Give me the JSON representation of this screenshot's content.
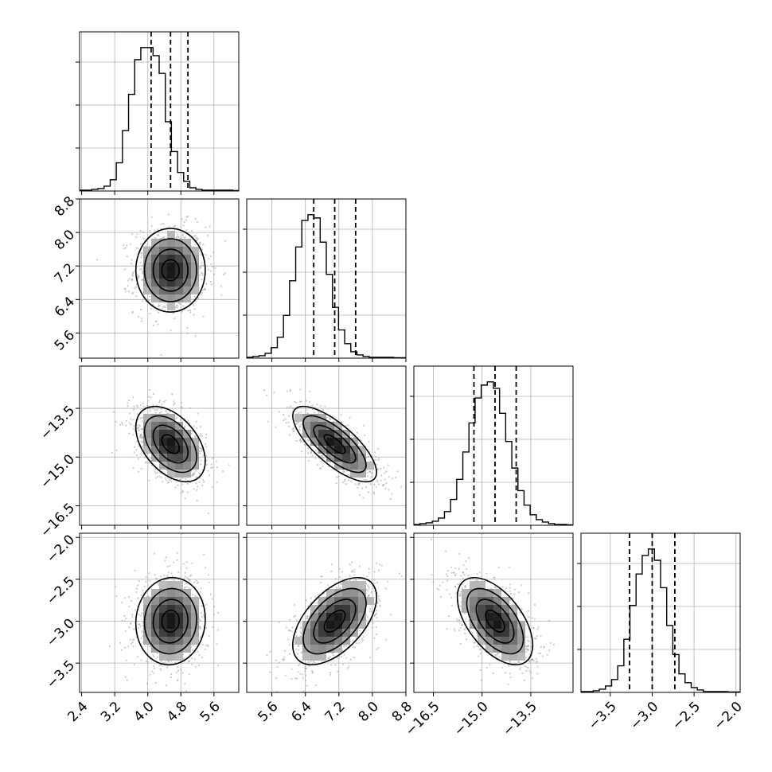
{
  "chart_data": {
    "type": "corner",
    "grid": true,
    "parameters": [
      {
        "mean": 4.55,
        "sd": 0.42,
        "lo": 2.35,
        "hi": 6.2,
        "ticks": [
          "2.4",
          "3.2",
          "4.0",
          "4.8",
          "5.6"
        ],
        "tick_values": [
          2.4,
          3.2,
          4.0,
          4.8,
          5.6
        ],
        "quantiles": [
          4.08,
          4.55,
          4.97
        ]
      },
      {
        "mean": 7.1,
        "sd": 0.5,
        "lo": 5.0,
        "hi": 8.8,
        "ticks": [
          "5.6",
          "6.4",
          "7.2",
          "8.0",
          "8.8"
        ],
        "tick_values": [
          5.6,
          6.4,
          7.2,
          8.0,
          8.8
        ],
        "quantiles": [
          6.6,
          7.1,
          7.6
        ]
      },
      {
        "mean": -14.6,
        "sd": 0.58,
        "lo": -17.1,
        "hi": -12.2,
        "ticks": [
          "−16.5",
          "−15.0",
          "−13.5"
        ],
        "tick_values": [
          -16.5,
          -15.0,
          -13.5
        ],
        "quantiles": [
          -15.25,
          -14.6,
          -13.95
        ]
      },
      {
        "mean": -3.0,
        "sd": 0.26,
        "lo": -3.85,
        "hi": -1.95,
        "ticks": [
          "−3.5",
          "−3.0",
          "−2.5",
          "−2.0"
        ],
        "tick_values": [
          -3.5,
          -3.0,
          -2.5,
          -2.0
        ],
        "quantiles": [
          -3.27,
          -3.0,
          -2.73
        ]
      }
    ],
    "correlations": [
      [
        1,
        0.0,
        -0.45,
        0.05
      ],
      [
        0.0,
        1,
        -0.75,
        0.55
      ],
      [
        -0.45,
        -0.75,
        1,
        -0.55
      ],
      [
        0.05,
        0.55,
        -0.55,
        1
      ]
    ],
    "histograms": [
      [
        1,
        1,
        2,
        3,
        6,
        14,
        35,
        75,
        120,
        163,
        178,
        178,
        168,
        146,
        86,
        49,
        23,
        12,
        4,
        2,
        1,
        1,
        1,
        1,
        1,
        0.5
      ],
      [
        1,
        2,
        3,
        6,
        13,
        26,
        53,
        96,
        138,
        171,
        178,
        174,
        144,
        104,
        63,
        35,
        18,
        8,
        4,
        2,
        1,
        1,
        1,
        1,
        0.5,
        0.5
      ],
      [
        1,
        2,
        3,
        5,
        9,
        17,
        32,
        57,
        91,
        127,
        158,
        174,
        178,
        170,
        139,
        104,
        71,
        43,
        25,
        13,
        7,
        4,
        2,
        1,
        1,
        0.5
      ],
      [
        1,
        1,
        2,
        4,
        8,
        16,
        33,
        66,
        108,
        147,
        170,
        178,
        164,
        130,
        83,
        47,
        23,
        12,
        6,
        3,
        1,
        1,
        1,
        1,
        0.5,
        0.5
      ]
    ]
  }
}
